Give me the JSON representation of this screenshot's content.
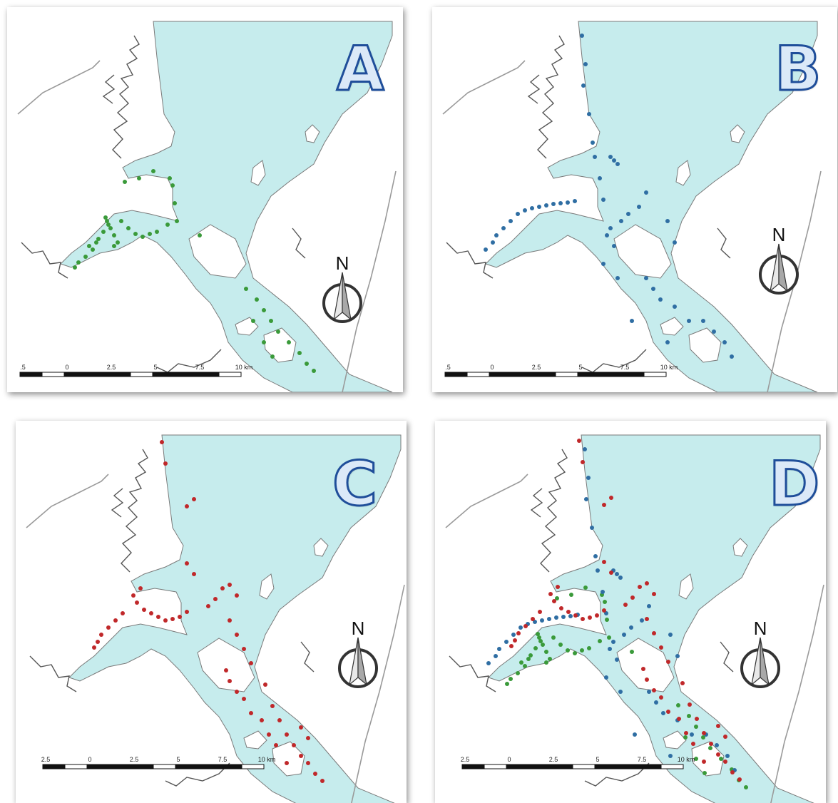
{
  "panels": [
    {
      "id": "A",
      "label": "A",
      "points": "green"
    },
    {
      "id": "B",
      "label": "B",
      "points": "blue"
    },
    {
      "id": "C",
      "label": "C",
      "points": "red"
    },
    {
      "id": "D",
      "label": "D",
      "points": "mixed"
    }
  ],
  "north_label": "N",
  "scale_ticks": [
    "2.5",
    "0",
    "2.5",
    "5",
    "7.5",
    "10 km"
  ],
  "scale_ticks_a": [
    ".5",
    "0",
    "2.5",
    "5",
    "7.5",
    "10 km"
  ],
  "scale_ticks_b": [
    ".5",
    "0",
    "2.5",
    "5",
    "7.5",
    "10 km"
  ],
  "colors": {
    "water": "#c6eced",
    "coast": "#7a7a7a",
    "green_points": "#3a9a3a",
    "blue_points": "#2f6ea3",
    "red_points": "#c0282a",
    "letter_fill": "#dbe9f8",
    "letter_stroke": "#1f4e9a"
  }
}
